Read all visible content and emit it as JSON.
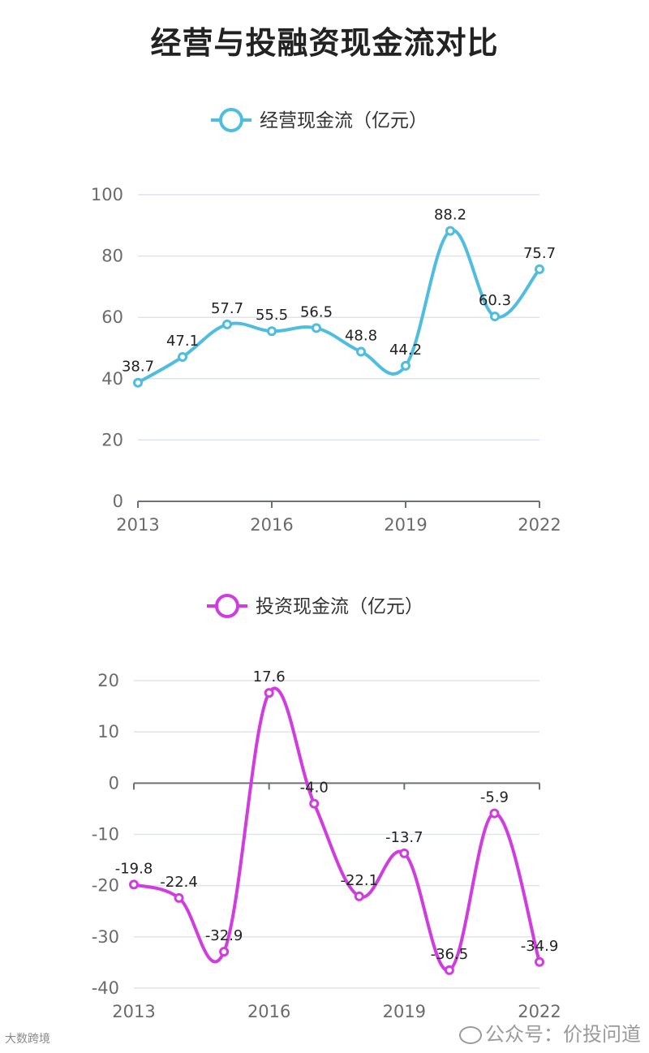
{
  "page": {
    "title": "经营与投融资现金流对比"
  },
  "watermarks": {
    "left": "大数跨境",
    "right": "公众号：价投问道"
  },
  "chart_data": [
    {
      "type": "line",
      "title": "",
      "legend": "经营现金流（亿元）",
      "color": "#4fbde0",
      "x": [
        2013,
        2014,
        2015,
        2016,
        2017,
        2018,
        2019,
        2020,
        2021,
        2022
      ],
      "x_tick_labels": [
        "2013",
        "2016",
        "2019",
        "2022"
      ],
      "series": [
        {
          "name": "经营现金流（亿元）",
          "values": [
            38.7,
            47.1,
            57.7,
            55.5,
            56.5,
            48.8,
            44.2,
            88.2,
            60.3,
            75.7
          ]
        }
      ],
      "ylim": [
        0,
        100
      ],
      "y_ticks": [
        0,
        20,
        40,
        60,
        80,
        100
      ],
      "grid": true,
      "legend_position": "top-center",
      "smooth": true
    },
    {
      "type": "line",
      "title": "",
      "legend": "投资现金流（亿元）",
      "color": "#d13ce0",
      "x": [
        2013,
        2014,
        2015,
        2016,
        2017,
        2018,
        2019,
        2020,
        2021,
        2022
      ],
      "x_tick_labels": [
        "2013",
        "2016",
        "2019",
        "2022"
      ],
      "series": [
        {
          "name": "投资现金流（亿元）",
          "values": [
            -19.8,
            -22.4,
            -32.9,
            17.6,
            -4.0,
            -22.1,
            -13.7,
            -36.5,
            -5.9,
            -34.9
          ]
        }
      ],
      "ylim": [
        -40,
        20
      ],
      "y_ticks": [
        -40,
        -30,
        -20,
        -10,
        0,
        10,
        20
      ],
      "grid": true,
      "legend_position": "top-center",
      "smooth": true
    }
  ]
}
